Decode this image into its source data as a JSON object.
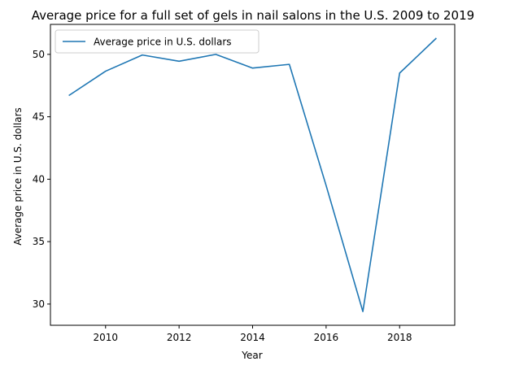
{
  "chart_data": {
    "type": "line",
    "title": "Average price for a full set of gels in nail salons in the U.S. 2009 to 2019",
    "xlabel": "Year",
    "ylabel": "Average price in U.S. dollars",
    "x": [
      2009,
      2010,
      2011,
      2012,
      2013,
      2014,
      2015,
      2016,
      2017,
      2018,
      2019
    ],
    "series": [
      {
        "name": "Average price in U.S. dollars",
        "color": "#1f77b4",
        "values": [
          46.7,
          48.65,
          49.95,
          49.45,
          50.0,
          48.9,
          49.2,
          39.5,
          29.4,
          48.5,
          51.3
        ]
      }
    ],
    "xlim": [
      2008.5,
      2019.5
    ],
    "ylim": [
      28.3,
      52.4
    ],
    "xticks": [
      2010,
      2012,
      2014,
      2016,
      2018
    ],
    "yticks": [
      30,
      35,
      40,
      45,
      50
    ],
    "grid": false,
    "legend_position": "top-left"
  }
}
